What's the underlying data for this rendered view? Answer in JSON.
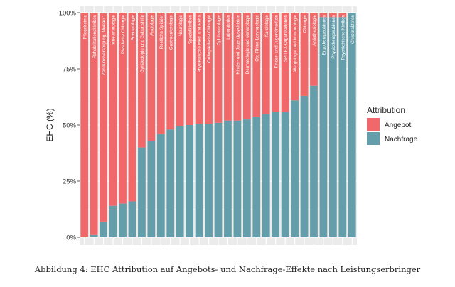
{
  "caption": "Abbildung 4: EHC Attribution auf Angebots- und Nachfrage-Effekte nach Leistungserbringer",
  "colors": {
    "angebot": "#F0686A",
    "nachfrage": "#649EAA",
    "panel": "#EBEBEB",
    "grid": "#FFFFFF"
  },
  "chart_data": {
    "type": "bar",
    "stacked": true,
    "title": "",
    "xlabel": "",
    "ylabel": "EHC (%)",
    "ylim": [
      0,
      100
    ],
    "yticks": [
      "0%",
      "25%",
      "50%",
      "75%",
      "100%"
    ],
    "legend": {
      "title": "Attribution",
      "position": "right",
      "entries": [
        "Angebot",
        "Nachfrage"
      ]
    },
    "categories": [
      "Pflegeheime",
      "Rehabilitationskliniken",
      "Zentrumsversorgung, Niveau 1",
      "Rheumatologie",
      "Plastische Chirurgie",
      "Pneumologie",
      "Gynäkologie und Geburtshilfe",
      "Angiologie",
      "Restliche Spitäler",
      "Gastroenterologie",
      "Neurologie",
      "Spezialkliniken",
      "Physikalische Med. und Reha",
      "Orthopädische Chirurgie",
      "Ophthalmologie",
      "Laboratorien",
      "Kinder- und Jugendpsychiatrie",
      "Dermatologie und Venerologie",
      "Oto-Rhino-Laryngologie",
      "Kardiologie",
      "Kinder- und Jugendmedizin",
      "SPITEX-Organisationen",
      "Allergologie und Immunologie",
      "Chirurgie",
      "Anästhesiologie",
      "Ergotherapeut/innen",
      "Physiotherapeut/innen",
      "Psychiatrische Kliniken",
      "Chiropraktoren"
    ],
    "series": [
      {
        "name": "Nachfrage",
        "values": [
          0,
          1,
          7,
          14,
          15,
          16,
          40,
          43,
          46,
          48,
          49.5,
          50,
          50.5,
          50.5,
          51,
          52,
          52,
          52.5,
          53.5,
          55,
          56,
          56,
          61,
          63,
          67.5,
          98,
          98,
          98,
          100
        ]
      },
      {
        "name": "Angebot",
        "values": [
          100,
          99,
          93,
          86,
          85,
          84,
          60,
          57,
          54,
          52,
          50.5,
          50,
          49.5,
          49.5,
          49,
          48,
          48,
          47.5,
          46.5,
          45,
          44,
          44,
          39,
          37,
          32.5,
          2,
          2,
          2,
          0
        ]
      }
    ]
  }
}
